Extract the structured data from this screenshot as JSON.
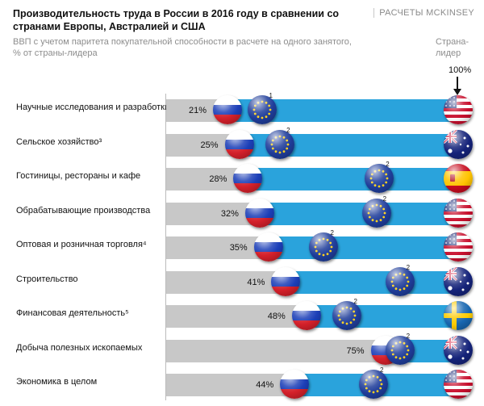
{
  "header": {
    "title": "Производительность труда в России в 2016 году в сравнении со странами Европы, Австралией и США",
    "source": "РАСЧЕТЫ MCKINSEY",
    "subtitle": "ВВП с учетом паритета покупательной способности в расчете на одного занятого, % от страны-лидера",
    "leader_label": "Страна-лидер",
    "leader_value": "100%"
  },
  "colors": {
    "russia_bar": "#c8c8c8",
    "gap_bar": "#2aa3dc"
  },
  "chart_data": {
    "type": "bar",
    "title": "Производительность труда в России в 2016 году в сравнении со странами Европы, Австралией и США",
    "unit": "% от страны-лидера",
    "xlim": [
      0,
      100
    ],
    "categories": [
      "Научные исследования и разработки",
      "Сельское хозяйство³",
      "Гостиницы, рестораны и кафе",
      "Обрабатывающие производства",
      "Оптовая и розничная торговля⁴",
      "Строительство",
      "Финансовая деятельность⁵",
      "Добыча полезных ископаемых",
      "Экономика в целом"
    ],
    "russia_values": [
      21,
      25,
      28,
      32,
      35,
      41,
      48,
      75,
      44
    ],
    "russia_labels": [
      "21%",
      "25%",
      "28%",
      "32%",
      "35%",
      "41%",
      "48%",
      "75%",
      "44%"
    ],
    "eu_values": [
      33,
      39,
      73,
      72,
      54,
      80,
      62,
      80,
      71
    ],
    "eu_notes": [
      "1",
      "2",
      "2",
      "2",
      "2",
      "2",
      "2",
      "2",
      "2"
    ],
    "leader_value": 100,
    "leaders": [
      "usa-flag-icon",
      "australia-flag-icon",
      "spain-flag-icon",
      "usa-flag-icon",
      "usa-flag-icon",
      "australia-flag-icon",
      "sweden-flag-icon",
      "australia-flag-icon",
      "usa-flag-icon"
    ]
  }
}
